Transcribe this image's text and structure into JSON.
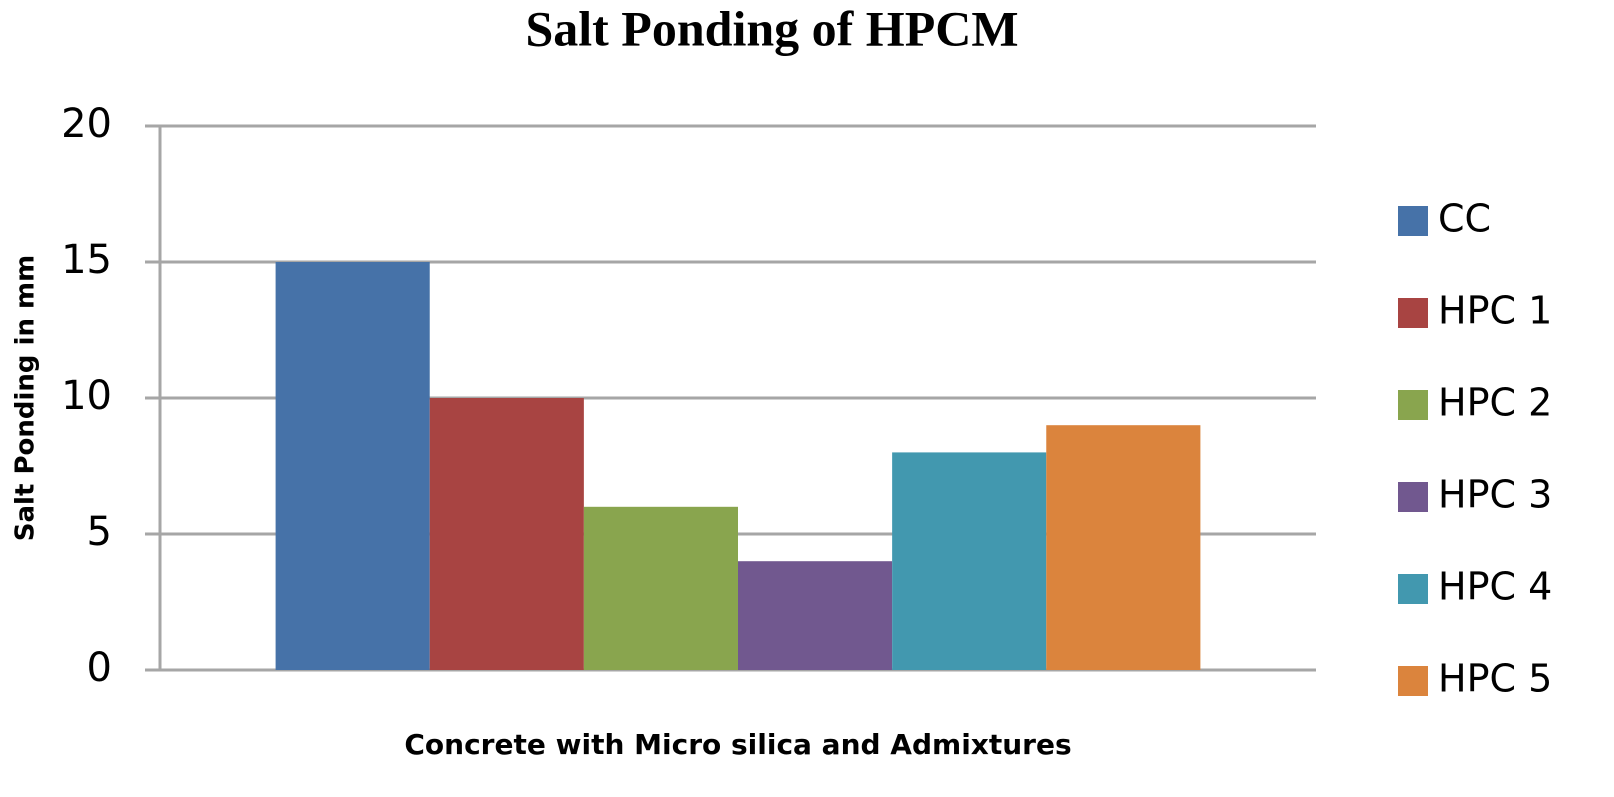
{
  "chart_data": {
    "type": "bar",
    "title": "Salt Ponding of HPCM",
    "x_label": "Concrete with Micro silica and Admixtures",
    "y_label": "Salt Ponding in mm",
    "categories": [
      null
    ],
    "series": [
      {
        "name": "CC",
        "color": "#4672a8",
        "values": [
          15
        ]
      },
      {
        "name": "HPC 1",
        "color": "#a84442",
        "values": [
          10
        ]
      },
      {
        "name": "HPC 2",
        "color": "#89a54e",
        "values": [
          6
        ]
      },
      {
        "name": "HPC 3",
        "color": "#71588f",
        "values": [
          4
        ]
      },
      {
        "name": "HPC 4",
        "color": "#4298af",
        "values": [
          8
        ]
      },
      {
        "name": "HPC 5",
        "color": "#db843d",
        "values": [
          9
        ]
      }
    ],
    "ylim": [
      0,
      20
    ],
    "yticks": [
      0,
      5,
      10,
      15,
      20
    ],
    "grid": true,
    "legend": "right"
  }
}
